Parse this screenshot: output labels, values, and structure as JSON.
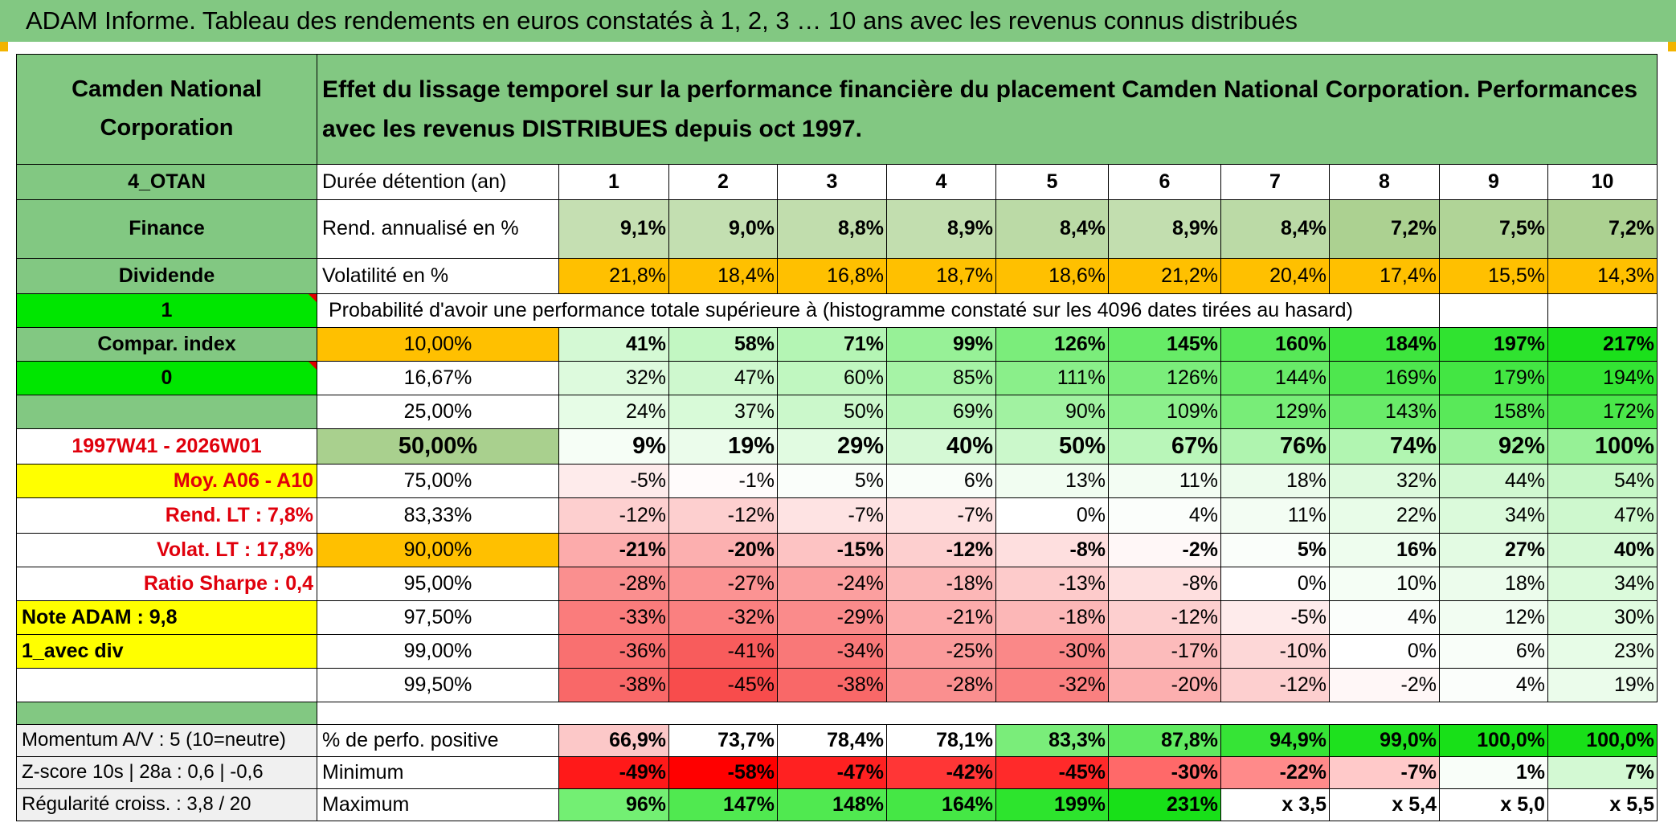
{
  "title": "ADAM Informe. Tableau des rendements en euros constatés à 1, 2, 3 … 10 ans avec les revenus connus distribués",
  "header": {
    "name": "Camden National Corporation",
    "description": "Effet du lissage temporel sur la performance financière du placement Camden National Corporation. Performances avec les revenus DISTRIBUES depuis oct 1997."
  },
  "side": {
    "code": "4_OTAN",
    "sector": "Finance",
    "type": "Dividende",
    "flag1": "1",
    "compar": "Compar. index",
    "flag0": "0",
    "period": "1997W41 - 2026W01",
    "moy": "Moy. A06 - A10",
    "rend_lt": "Rend. LT :   7,8%",
    "volat_lt": "Volat. LT :   17,8%",
    "sharpe": "Ratio Sharpe :   0,4",
    "note": "Note ADAM : 9,8",
    "avec_div": "1_avec div",
    "momentum": "Momentum A/V : 5 (10=neutre)",
    "zscore": "Z-score 10s | 28a : 0,6 | -0,6",
    "regularite": "Régularité croiss. : 3,8 / 20"
  },
  "labels": {
    "duree": "Durée détention (an)",
    "rend": "Rend. annualisé en %",
    "volat": "Volatilité en %",
    "proba": "Probabilité d'avoir une performance totale supérieure à (histogramme constaté sur les 4096 dates tirées au hasard)",
    "positive": "% de perfo. positive",
    "minimum": "Minimum",
    "maximum": "Maximum"
  },
  "years": [
    "1",
    "2",
    "3",
    "4",
    "5",
    "6",
    "7",
    "8",
    "9",
    "10"
  ],
  "rend": [
    "9,1%",
    "9,0%",
    "8,8%",
    "8,9%",
    "8,4%",
    "8,9%",
    "8,4%",
    "7,2%",
    "7,5%",
    "7,2%"
  ],
  "volat": [
    "21,8%",
    "18,4%",
    "16,8%",
    "18,7%",
    "18,6%",
    "21,2%",
    "20,4%",
    "17,4%",
    "15,5%",
    "14,3%"
  ],
  "quantiles": [
    {
      "label": "10,00%",
      "values": [
        "41%",
        "58%",
        "71%",
        "99%",
        "126%",
        "145%",
        "160%",
        "184%",
        "197%",
        "217%"
      ]
    },
    {
      "label": "16,67%",
      "values": [
        "32%",
        "47%",
        "60%",
        "85%",
        "111%",
        "126%",
        "144%",
        "169%",
        "179%",
        "194%"
      ]
    },
    {
      "label": "25,00%",
      "values": [
        "24%",
        "37%",
        "50%",
        "69%",
        "90%",
        "109%",
        "129%",
        "143%",
        "158%",
        "172%"
      ]
    },
    {
      "label": "50,00%",
      "values": [
        "9%",
        "19%",
        "29%",
        "40%",
        "50%",
        "67%",
        "76%",
        "74%",
        "92%",
        "100%"
      ]
    },
    {
      "label": "75,00%",
      "values": [
        "-5%",
        "-1%",
        "5%",
        "6%",
        "13%",
        "11%",
        "18%",
        "32%",
        "44%",
        "54%"
      ]
    },
    {
      "label": "83,33%",
      "values": [
        "-12%",
        "-12%",
        "-7%",
        "-7%",
        "0%",
        "4%",
        "11%",
        "22%",
        "34%",
        "47%"
      ]
    },
    {
      "label": "90,00%",
      "values": [
        "-21%",
        "-20%",
        "-15%",
        "-12%",
        "-8%",
        "-2%",
        "5%",
        "16%",
        "27%",
        "40%"
      ]
    },
    {
      "label": "95,00%",
      "values": [
        "-28%",
        "-27%",
        "-24%",
        "-18%",
        "-13%",
        "-8%",
        "0%",
        "10%",
        "18%",
        "34%"
      ]
    },
    {
      "label": "97,50%",
      "values": [
        "-33%",
        "-32%",
        "-29%",
        "-21%",
        "-18%",
        "-12%",
        "-5%",
        "4%",
        "12%",
        "30%"
      ]
    },
    {
      "label": "99,00%",
      "values": [
        "-36%",
        "-41%",
        "-34%",
        "-25%",
        "-30%",
        "-17%",
        "-10%",
        "0%",
        "6%",
        "23%"
      ]
    },
    {
      "label": "99,50%",
      "values": [
        "-38%",
        "-45%",
        "-38%",
        "-28%",
        "-32%",
        "-20%",
        "-12%",
        "-2%",
        "4%",
        "19%"
      ]
    }
  ],
  "positive": [
    "66,9%",
    "73,7%",
    "78,4%",
    "78,1%",
    "83,3%",
    "87,8%",
    "94,9%",
    "99,0%",
    "100,0%",
    "100,0%"
  ],
  "minimum": [
    "-49%",
    "-58%",
    "-47%",
    "-42%",
    "-45%",
    "-30%",
    "-22%",
    "-7%",
    "1%",
    "7%"
  ],
  "maximum": [
    "96%",
    "147%",
    "148%",
    "164%",
    "199%",
    "231%",
    "x 3,5",
    "x 5,4",
    "x 5,0",
    "x 5,5"
  ],
  "colors": {
    "header_green": "#82c882",
    "yellow": "#ffff00",
    "orange": "#ffc000",
    "lime": "#00e600",
    "red_text": "#e0000c",
    "rend_bg": "#c6e0b4"
  }
}
